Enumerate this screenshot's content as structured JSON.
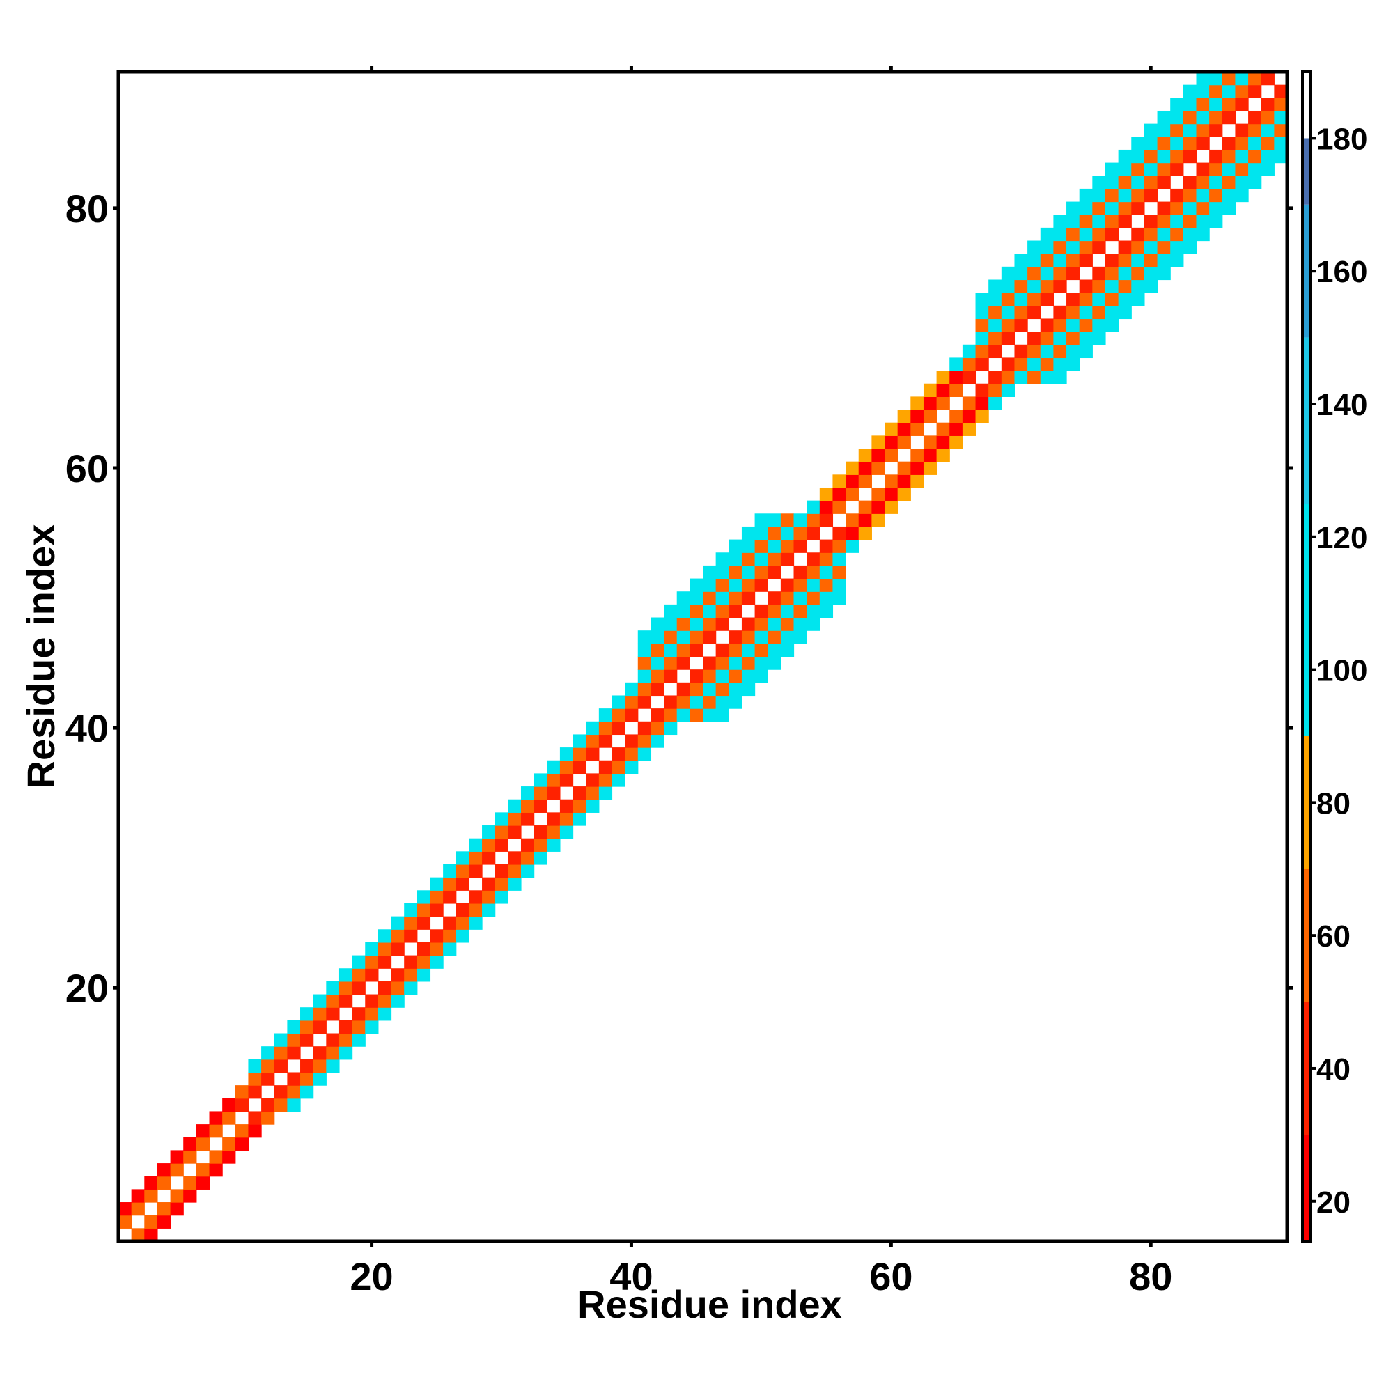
{
  "chart_data": {
    "type": "heatmap",
    "title": "",
    "xlabel": "Residue index",
    "ylabel": "Residue index",
    "xlim": [
      0.5,
      90.5
    ],
    "ylim": [
      0.5,
      90.5
    ],
    "x_ticks": [
      20,
      40,
      60,
      80
    ],
    "y_ticks": [
      20,
      40,
      60,
      80
    ],
    "colorbar": {
      "range": [
        14,
        190
      ],
      "ticks": [
        20,
        40,
        60,
        80,
        100,
        120,
        140,
        160,
        180
      ],
      "bands": [
        {
          "min": 14,
          "max": 30,
          "color": "#ff0000"
        },
        {
          "min": 30,
          "max": 50,
          "color": "#ff2200"
        },
        {
          "min": 50,
          "max": 70,
          "color": "#ff6600"
        },
        {
          "min": 70,
          "max": 90,
          "color": "#ffa500"
        },
        {
          "min": 90,
          "max": 125,
          "color": "#00e5ee"
        },
        {
          "min": 125,
          "max": 150,
          "color": "#1ec8e6"
        },
        {
          "min": 150,
          "max": 170,
          "color": "#2a9fd6"
        },
        {
          "min": 170,
          "max": 180,
          "color": "#4a6fb0"
        },
        {
          "min": 180,
          "max": 190,
          "color": "#ffffff"
        }
      ]
    },
    "cells_note_omitted": null,
    "pattern": {
      "band_halfwidth_by_region": [
        {
          "from": 1,
          "to": 10,
          "halfwidth": 2
        },
        {
          "from": 10,
          "to": 40,
          "halfwidth": 3
        },
        {
          "from": 40,
          "to": 56,
          "halfwidth": 6
        },
        {
          "from": 56,
          "to": 66,
          "halfwidth": 3
        },
        {
          "from": 66,
          "to": 90,
          "halfwidth": 6
        }
      ],
      "values_by_diagonal_offset": {
        "0": 190,
        "1": 30,
        "2": 60,
        "3": 110,
        "4": 60,
        "5": 115,
        "6": 110
      },
      "region_overrides": [
        {
          "from": 1,
          "to": 10,
          "offsets": {
            "2": 25,
            "3": 40,
            "1": 55
          }
        },
        {
          "from": 56,
          "to": 66,
          "offsets": {
            "1": 60,
            "2": 25,
            "3": 80
          }
        }
      ]
    }
  }
}
